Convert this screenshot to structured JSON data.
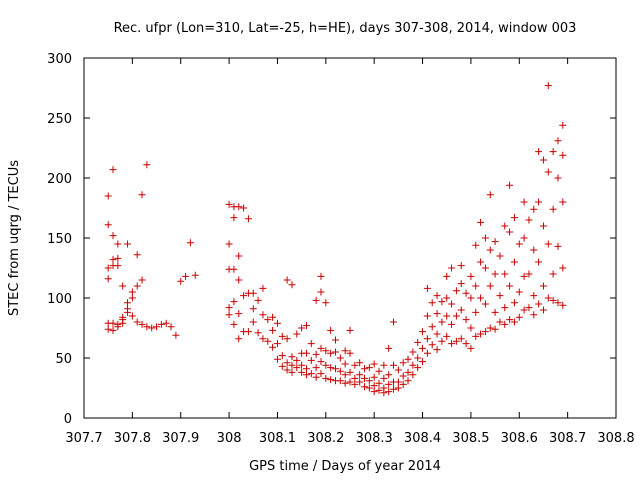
{
  "chart_data": {
    "type": "scatter",
    "title": "Rec. ufpr (Lon=310, Lat=-25, h=HE), days 307-308, 2014, window 003",
    "xlabel": "GPS time / Days of year 2014",
    "ylabel": "STEC from uqrg / TECUs",
    "xlim": [
      307.7,
      308.8
    ],
    "ylim": [
      0,
      300
    ],
    "grid": false,
    "marker": "+",
    "marker_color": "#cc0000",
    "x_ticks": [
      {
        "value": 307.7,
        "label": "307.7"
      },
      {
        "value": 307.8,
        "label": "307.8"
      },
      {
        "value": 307.9,
        "label": "307.9"
      },
      {
        "value": 308.0,
        "label": "308"
      },
      {
        "value": 308.1,
        "label": "308.1"
      },
      {
        "value": 308.2,
        "label": "308.2"
      },
      {
        "value": 308.3,
        "label": "308.3"
      },
      {
        "value": 308.4,
        "label": "308.4"
      },
      {
        "value": 308.5,
        "label": "308.5"
      },
      {
        "value": 308.6,
        "label": "308.6"
      },
      {
        "value": 308.7,
        "label": "308.7"
      },
      {
        "value": 308.8,
        "label": "308.8"
      }
    ],
    "y_ticks": [
      {
        "value": 0,
        "label": "0"
      },
      {
        "value": 50,
        "label": "50"
      },
      {
        "value": 100,
        "label": "100"
      },
      {
        "value": 150,
        "label": "150"
      },
      {
        "value": 200,
        "label": "200"
      },
      {
        "value": 250,
        "label": "250"
      },
      {
        "value": 300,
        "label": "300"
      }
    ],
    "points": [
      [
        307.75,
        185
      ],
      [
        307.75,
        161
      ],
      [
        307.75,
        125
      ],
      [
        307.75,
        116
      ],
      [
        307.75,
        79
      ],
      [
        307.75,
        74
      ],
      [
        307.76,
        207
      ],
      [
        307.76,
        152
      ],
      [
        307.76,
        127
      ],
      [
        307.76,
        132
      ],
      [
        307.76,
        79
      ],
      [
        307.76,
        73
      ],
      [
        307.77,
        145
      ],
      [
        307.77,
        133
      ],
      [
        307.77,
        127
      ],
      [
        307.77,
        78
      ],
      [
        307.77,
        76
      ],
      [
        307.78,
        110
      ],
      [
        307.78,
        82
      ],
      [
        307.78,
        79
      ],
      [
        307.78,
        84
      ],
      [
        307.79,
        145
      ],
      [
        307.79,
        96
      ],
      [
        307.79,
        91
      ],
      [
        307.79,
        88
      ],
      [
        307.8,
        105
      ],
      [
        307.8,
        100
      ],
      [
        307.8,
        85
      ],
      [
        307.81,
        136
      ],
      [
        307.81,
        110
      ],
      [
        307.81,
        80
      ],
      [
        307.82,
        186
      ],
      [
        307.82,
        115
      ],
      [
        307.82,
        78
      ],
      [
        307.83,
        211
      ],
      [
        307.83,
        76
      ],
      [
        307.84,
        75
      ],
      [
        307.85,
        76
      ],
      [
        307.86,
        78
      ],
      [
        307.87,
        79
      ],
      [
        307.88,
        76
      ],
      [
        307.89,
        69
      ],
      [
        307.9,
        114
      ],
      [
        307.91,
        118
      ],
      [
        307.92,
        146
      ],
      [
        307.93,
        119
      ],
      [
        308.0,
        178
      ],
      [
        308.0,
        145
      ],
      [
        308.0,
        124
      ],
      [
        308.0,
        92
      ],
      [
        308.0,
        86
      ],
      [
        308.01,
        176
      ],
      [
        308.01,
        167
      ],
      [
        308.01,
        124
      ],
      [
        308.01,
        97
      ],
      [
        308.01,
        78
      ],
      [
        308.02,
        176
      ],
      [
        308.02,
        135
      ],
      [
        308.02,
        115
      ],
      [
        308.02,
        87
      ],
      [
        308.02,
        66
      ],
      [
        308.03,
        175
      ],
      [
        308.03,
        102
      ],
      [
        308.03,
        72
      ],
      [
        308.04,
        166
      ],
      [
        308.04,
        104
      ],
      [
        308.04,
        72
      ],
      [
        308.05,
        104
      ],
      [
        308.05,
        91
      ],
      [
        308.05,
        80
      ],
      [
        308.06,
        98
      ],
      [
        308.06,
        71
      ],
      [
        308.07,
        108
      ],
      [
        308.07,
        86
      ],
      [
        308.07,
        66
      ],
      [
        308.08,
        82
      ],
      [
        308.08,
        64
      ],
      [
        308.09,
        84
      ],
      [
        308.09,
        73
      ],
      [
        308.09,
        59
      ],
      [
        308.1,
        79
      ],
      [
        308.1,
        62
      ],
      [
        308.1,
        49
      ],
      [
        308.11,
        68
      ],
      [
        308.11,
        52
      ],
      [
        308.11,
        43
      ],
      [
        308.12,
        115
      ],
      [
        308.12,
        66
      ],
      [
        308.12,
        46
      ],
      [
        308.12,
        40
      ],
      [
        308.13,
        111
      ],
      [
        308.13,
        51
      ],
      [
        308.13,
        44
      ],
      [
        308.13,
        38
      ],
      [
        308.14,
        70
      ],
      [
        308.14,
        48
      ],
      [
        308.14,
        42
      ],
      [
        308.15,
        75
      ],
      [
        308.15,
        54
      ],
      [
        308.15,
        44
      ],
      [
        308.15,
        38
      ],
      [
        308.16,
        77
      ],
      [
        308.16,
        54
      ],
      [
        308.16,
        41
      ],
      [
        308.16,
        36
      ],
      [
        308.17,
        62
      ],
      [
        308.17,
        48
      ],
      [
        308.17,
        37
      ],
      [
        308.18,
        98
      ],
      [
        308.18,
        53
      ],
      [
        308.18,
        42
      ],
      [
        308.18,
        34
      ],
      [
        308.19,
        105
      ],
      [
        308.19,
        118
      ],
      [
        308.19,
        58
      ],
      [
        308.19,
        47
      ],
      [
        308.19,
        37
      ],
      [
        308.2,
        96
      ],
      [
        308.2,
        56
      ],
      [
        308.2,
        44
      ],
      [
        308.2,
        33
      ],
      [
        308.21,
        73
      ],
      [
        308.21,
        54
      ],
      [
        308.21,
        42
      ],
      [
        308.21,
        32
      ],
      [
        308.22,
        65
      ],
      [
        308.22,
        55
      ],
      [
        308.22,
        41
      ],
      [
        308.22,
        31
      ],
      [
        308.23,
        50
      ],
      [
        308.23,
        39
      ],
      [
        308.23,
        31
      ],
      [
        308.24,
        56
      ],
      [
        308.24,
        45
      ],
      [
        308.24,
        36
      ],
      [
        308.24,
        29
      ],
      [
        308.25,
        73
      ],
      [
        308.25,
        54
      ],
      [
        308.25,
        38
      ],
      [
        308.25,
        30
      ],
      [
        308.26,
        44
      ],
      [
        308.26,
        33
      ],
      [
        308.26,
        28
      ],
      [
        308.27,
        46
      ],
      [
        308.27,
        36
      ],
      [
        308.27,
        30
      ],
      [
        308.28,
        41
      ],
      [
        308.28,
        33
      ],
      [
        308.28,
        26
      ],
      [
        308.29,
        42
      ],
      [
        308.29,
        31
      ],
      [
        308.29,
        25
      ],
      [
        308.3,
        45
      ],
      [
        308.3,
        34
      ],
      [
        308.3,
        27
      ],
      [
        308.3,
        22
      ],
      [
        308.31,
        39
      ],
      [
        308.31,
        29
      ],
      [
        308.31,
        23
      ],
      [
        308.32,
        44
      ],
      [
        308.32,
        33
      ],
      [
        308.32,
        25
      ],
      [
        308.32,
        21
      ],
      [
        308.33,
        58
      ],
      [
        308.33,
        36
      ],
      [
        308.33,
        28
      ],
      [
        308.33,
        22
      ],
      [
        308.34,
        80
      ],
      [
        308.34,
        44
      ],
      [
        308.34,
        30
      ],
      [
        308.34,
        24
      ],
      [
        308.35,
        40
      ],
      [
        308.35,
        30
      ],
      [
        308.35,
        25
      ],
      [
        308.36,
        46
      ],
      [
        308.36,
        35
      ],
      [
        308.36,
        28
      ],
      [
        308.37,
        49
      ],
      [
        308.37,
        38
      ],
      [
        308.37,
        31
      ],
      [
        308.38,
        55
      ],
      [
        308.38,
        44
      ],
      [
        308.38,
        36
      ],
      [
        308.39,
        63
      ],
      [
        308.39,
        50
      ],
      [
        308.39,
        42
      ],
      [
        308.4,
        72
      ],
      [
        308.4,
        58
      ],
      [
        308.4,
        47
      ],
      [
        308.41,
        108
      ],
      [
        308.41,
        85
      ],
      [
        308.41,
        66
      ],
      [
        308.41,
        54
      ],
      [
        308.42,
        96
      ],
      [
        308.42,
        76
      ],
      [
        308.42,
        61
      ],
      [
        308.43,
        102
      ],
      [
        308.43,
        87
      ],
      [
        308.43,
        70
      ],
      [
        308.43,
        57
      ],
      [
        308.44,
        97
      ],
      [
        308.44,
        80
      ],
      [
        308.44,
        64
      ],
      [
        308.45,
        118
      ],
      [
        308.45,
        100
      ],
      [
        308.45,
        85
      ],
      [
        308.45,
        68
      ],
      [
        308.46,
        125
      ],
      [
        308.46,
        95
      ],
      [
        308.46,
        78
      ],
      [
        308.46,
        62
      ],
      [
        308.47,
        106
      ],
      [
        308.47,
        85
      ],
      [
        308.47,
        64
      ],
      [
        308.48,
        127
      ],
      [
        308.48,
        112
      ],
      [
        308.48,
        90
      ],
      [
        308.48,
        66
      ],
      [
        308.49,
        104
      ],
      [
        308.49,
        82
      ],
      [
        308.49,
        62
      ],
      [
        308.5,
        118
      ],
      [
        308.5,
        100
      ],
      [
        308.5,
        75
      ],
      [
        308.5,
        58
      ],
      [
        308.51,
        144
      ],
      [
        308.51,
        110
      ],
      [
        308.51,
        88
      ],
      [
        308.51,
        68
      ],
      [
        308.52,
        163
      ],
      [
        308.52,
        130
      ],
      [
        308.52,
        100
      ],
      [
        308.52,
        70
      ],
      [
        308.53,
        150
      ],
      [
        308.53,
        125
      ],
      [
        308.53,
        95
      ],
      [
        308.53,
        72
      ],
      [
        308.54,
        186
      ],
      [
        308.54,
        140
      ],
      [
        308.54,
        110
      ],
      [
        308.54,
        75
      ],
      [
        308.55,
        147
      ],
      [
        308.55,
        120
      ],
      [
        308.55,
        88
      ],
      [
        308.55,
        74
      ],
      [
        308.56,
        135
      ],
      [
        308.56,
        102
      ],
      [
        308.56,
        80
      ],
      [
        308.57,
        160
      ],
      [
        308.57,
        120
      ],
      [
        308.57,
        92
      ],
      [
        308.57,
        78
      ],
      [
        308.58,
        194
      ],
      [
        308.58,
        155
      ],
      [
        308.58,
        110
      ],
      [
        308.58,
        82
      ],
      [
        308.59,
        167
      ],
      [
        308.59,
        130
      ],
      [
        308.59,
        96
      ],
      [
        308.59,
        80
      ],
      [
        308.6,
        145
      ],
      [
        308.6,
        105
      ],
      [
        308.6,
        84
      ],
      [
        308.61,
        180
      ],
      [
        308.61,
        150
      ],
      [
        308.61,
        118
      ],
      [
        308.61,
        90
      ],
      [
        308.62,
        165
      ],
      [
        308.62,
        120
      ],
      [
        308.62,
        92
      ],
      [
        308.63,
        174
      ],
      [
        308.63,
        140
      ],
      [
        308.63,
        102
      ],
      [
        308.63,
        86
      ],
      [
        308.64,
        222
      ],
      [
        308.64,
        180
      ],
      [
        308.64,
        130
      ],
      [
        308.64,
        95
      ],
      [
        308.65,
        215
      ],
      [
        308.65,
        160
      ],
      [
        308.65,
        110
      ],
      [
        308.65,
        90
      ],
      [
        308.66,
        277
      ],
      [
        308.66,
        205
      ],
      [
        308.66,
        145
      ],
      [
        308.66,
        100
      ],
      [
        308.67,
        222
      ],
      [
        308.67,
        174
      ],
      [
        308.67,
        120
      ],
      [
        308.67,
        98
      ],
      [
        308.68,
        231
      ],
      [
        308.68,
        200
      ],
      [
        308.68,
        143
      ],
      [
        308.68,
        96
      ],
      [
        308.69,
        244
      ],
      [
        308.69,
        219
      ],
      [
        308.69,
        180
      ],
      [
        308.69,
        125
      ],
      [
        308.69,
        94
      ]
    ]
  }
}
